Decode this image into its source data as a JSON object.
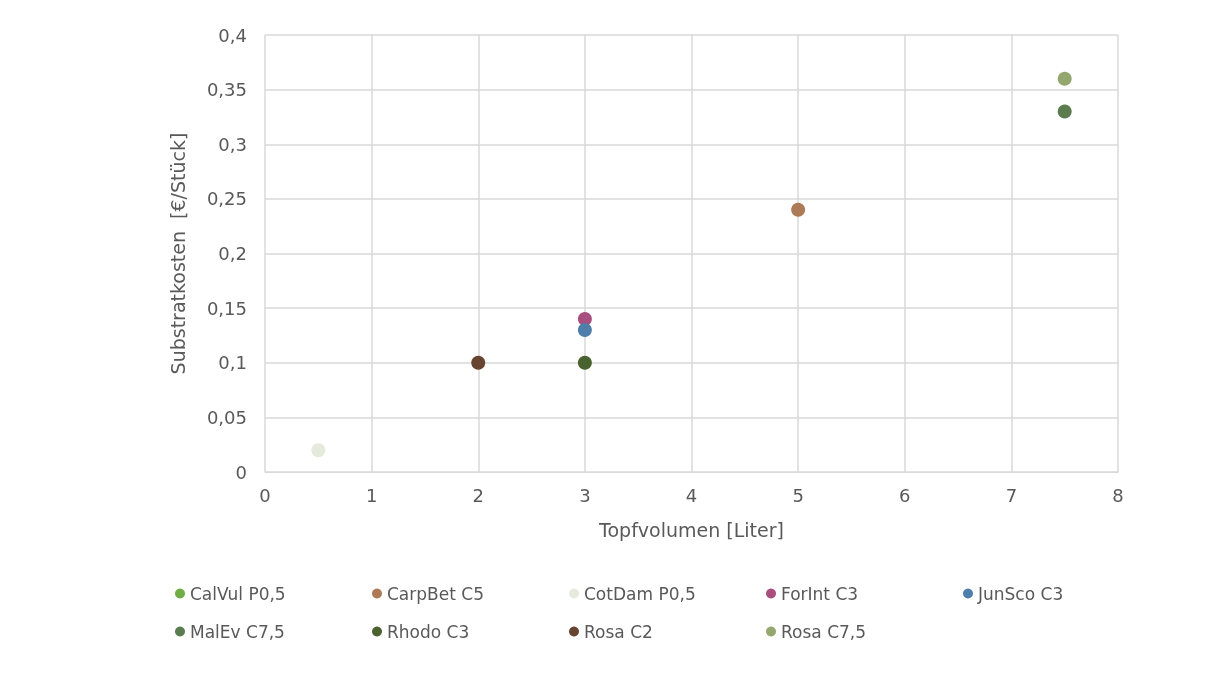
{
  "chart_data": {
    "type": "scatter",
    "xlabel": "Topfvolumen [Liter]",
    "ylabel": "Substratkosten  [€/Stück]",
    "xlim": [
      0,
      8
    ],
    "xticks": [
      0,
      1,
      2,
      3,
      4,
      5,
      6,
      7,
      8
    ],
    "ylim": [
      0,
      0.4
    ],
    "yticks": [
      0,
      {
        "value": 0.05,
        "label": "0,05"
      },
      {
        "value": 0.1,
        "label": "0,1"
      },
      {
        "value": 0.15,
        "label": "0,15"
      },
      {
        "value": 0.2,
        "label": "0,2"
      },
      {
        "value": 0.25,
        "label": "0,25"
      },
      {
        "value": 0.3,
        "label": "0,3"
      },
      {
        "value": 0.35,
        "label": "0,35"
      },
      {
        "value": 0.4,
        "label": "0,4"
      }
    ],
    "grid": true,
    "legend": "bottom",
    "marker": "circle",
    "series": [
      {
        "name": "CalVul P0,5",
        "color": "#70ad47"
      },
      {
        "name": "CarpBet C5",
        "color": "#ad7a58",
        "x": [
          5
        ],
        "values": [
          0.24
        ]
      },
      {
        "name": "CotDam P0,5",
        "color": "#e6eadc",
        "x": [
          0.5
        ],
        "values": [
          0.02
        ]
      },
      {
        "name": "ForInt C3",
        "color": "#a94f7f",
        "x": [
          3
        ],
        "values": [
          0.14
        ]
      },
      {
        "name": "JunSco C3",
        "color": "#4f7eaa",
        "x": [
          3
        ],
        "values": [
          0.13
        ]
      },
      {
        "name": "MalEv C7,5",
        "color": "#5a7c4f",
        "x": [
          7.5
        ],
        "values": [
          0.33
        ]
      },
      {
        "name": "Rhodo C3",
        "color": "#4a6230",
        "x": [
          3
        ],
        "values": [
          0.1
        ]
      },
      {
        "name": "Rosa C2",
        "color": "#664430",
        "x": [
          2
        ],
        "values": [
          0.1
        ]
      },
      {
        "name": "Rosa C7,5",
        "color": "#93a76e",
        "x": [
          7.5
        ],
        "values": [
          0.36
        ]
      }
    ]
  }
}
